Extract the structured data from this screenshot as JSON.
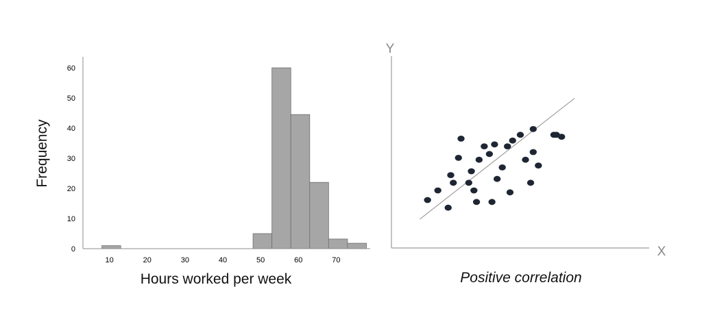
{
  "chart_data": [
    {
      "type": "bar",
      "title": "",
      "xlabel": "Hours worked per week",
      "ylabel": "Frequency",
      "xlim": [
        3,
        79
      ],
      "ylim": [
        0,
        60
      ],
      "xticks": [
        "10",
        "20",
        "30",
        "40",
        "50",
        "60",
        "70"
      ],
      "yticks": [
        "0",
        "10",
        "20",
        "30",
        "40",
        "50",
        "60"
      ],
      "bar_color": "#a6a6a6",
      "bins": [
        {
          "start": 8,
          "end": 13,
          "value": 1
        },
        {
          "start": 48,
          "end": 53,
          "value": 5
        },
        {
          "start": 53,
          "end": 58,
          "value": 60
        },
        {
          "start": 58,
          "end": 63,
          "value": 44.5
        },
        {
          "start": 63,
          "end": 68,
          "value": 22
        },
        {
          "start": 68,
          "end": 73,
          "value": 3.2
        },
        {
          "start": 73,
          "end": 78,
          "value": 1.8
        }
      ]
    },
    {
      "type": "scatter",
      "title": "Positive correlation",
      "xlabel": "X",
      "ylabel": "Y",
      "xlim": [
        0,
        100
      ],
      "ylim": [
        0,
        100
      ],
      "point_color": "#1f2633",
      "trendline": {
        "x": [
          11,
          71
        ],
        "y": [
          15,
          78
        ]
      },
      "points": [
        {
          "x": 14,
          "y": 25
        },
        {
          "x": 18,
          "y": 30
        },
        {
          "x": 22,
          "y": 21
        },
        {
          "x": 23,
          "y": 38
        },
        {
          "x": 24,
          "y": 34
        },
        {
          "x": 26,
          "y": 47
        },
        {
          "x": 27,
          "y": 57
        },
        {
          "x": 30,
          "y": 34
        },
        {
          "x": 31,
          "y": 40
        },
        {
          "x": 32,
          "y": 30
        },
        {
          "x": 33,
          "y": 24
        },
        {
          "x": 34,
          "y": 46
        },
        {
          "x": 36,
          "y": 53
        },
        {
          "x": 38,
          "y": 49
        },
        {
          "x": 39,
          "y": 24
        },
        {
          "x": 40,
          "y": 54
        },
        {
          "x": 41,
          "y": 36
        },
        {
          "x": 43,
          "y": 42
        },
        {
          "x": 45,
          "y": 53
        },
        {
          "x": 46,
          "y": 29
        },
        {
          "x": 47,
          "y": 56
        },
        {
          "x": 50,
          "y": 59
        },
        {
          "x": 52,
          "y": 46
        },
        {
          "x": 54,
          "y": 34
        },
        {
          "x": 55,
          "y": 50
        },
        {
          "x": 57,
          "y": 43
        },
        {
          "x": 55,
          "y": 62
        },
        {
          "x": 64,
          "y": 59
        },
        {
          "x": 63,
          "y": 59
        },
        {
          "x": 66,
          "y": 58
        }
      ]
    }
  ]
}
